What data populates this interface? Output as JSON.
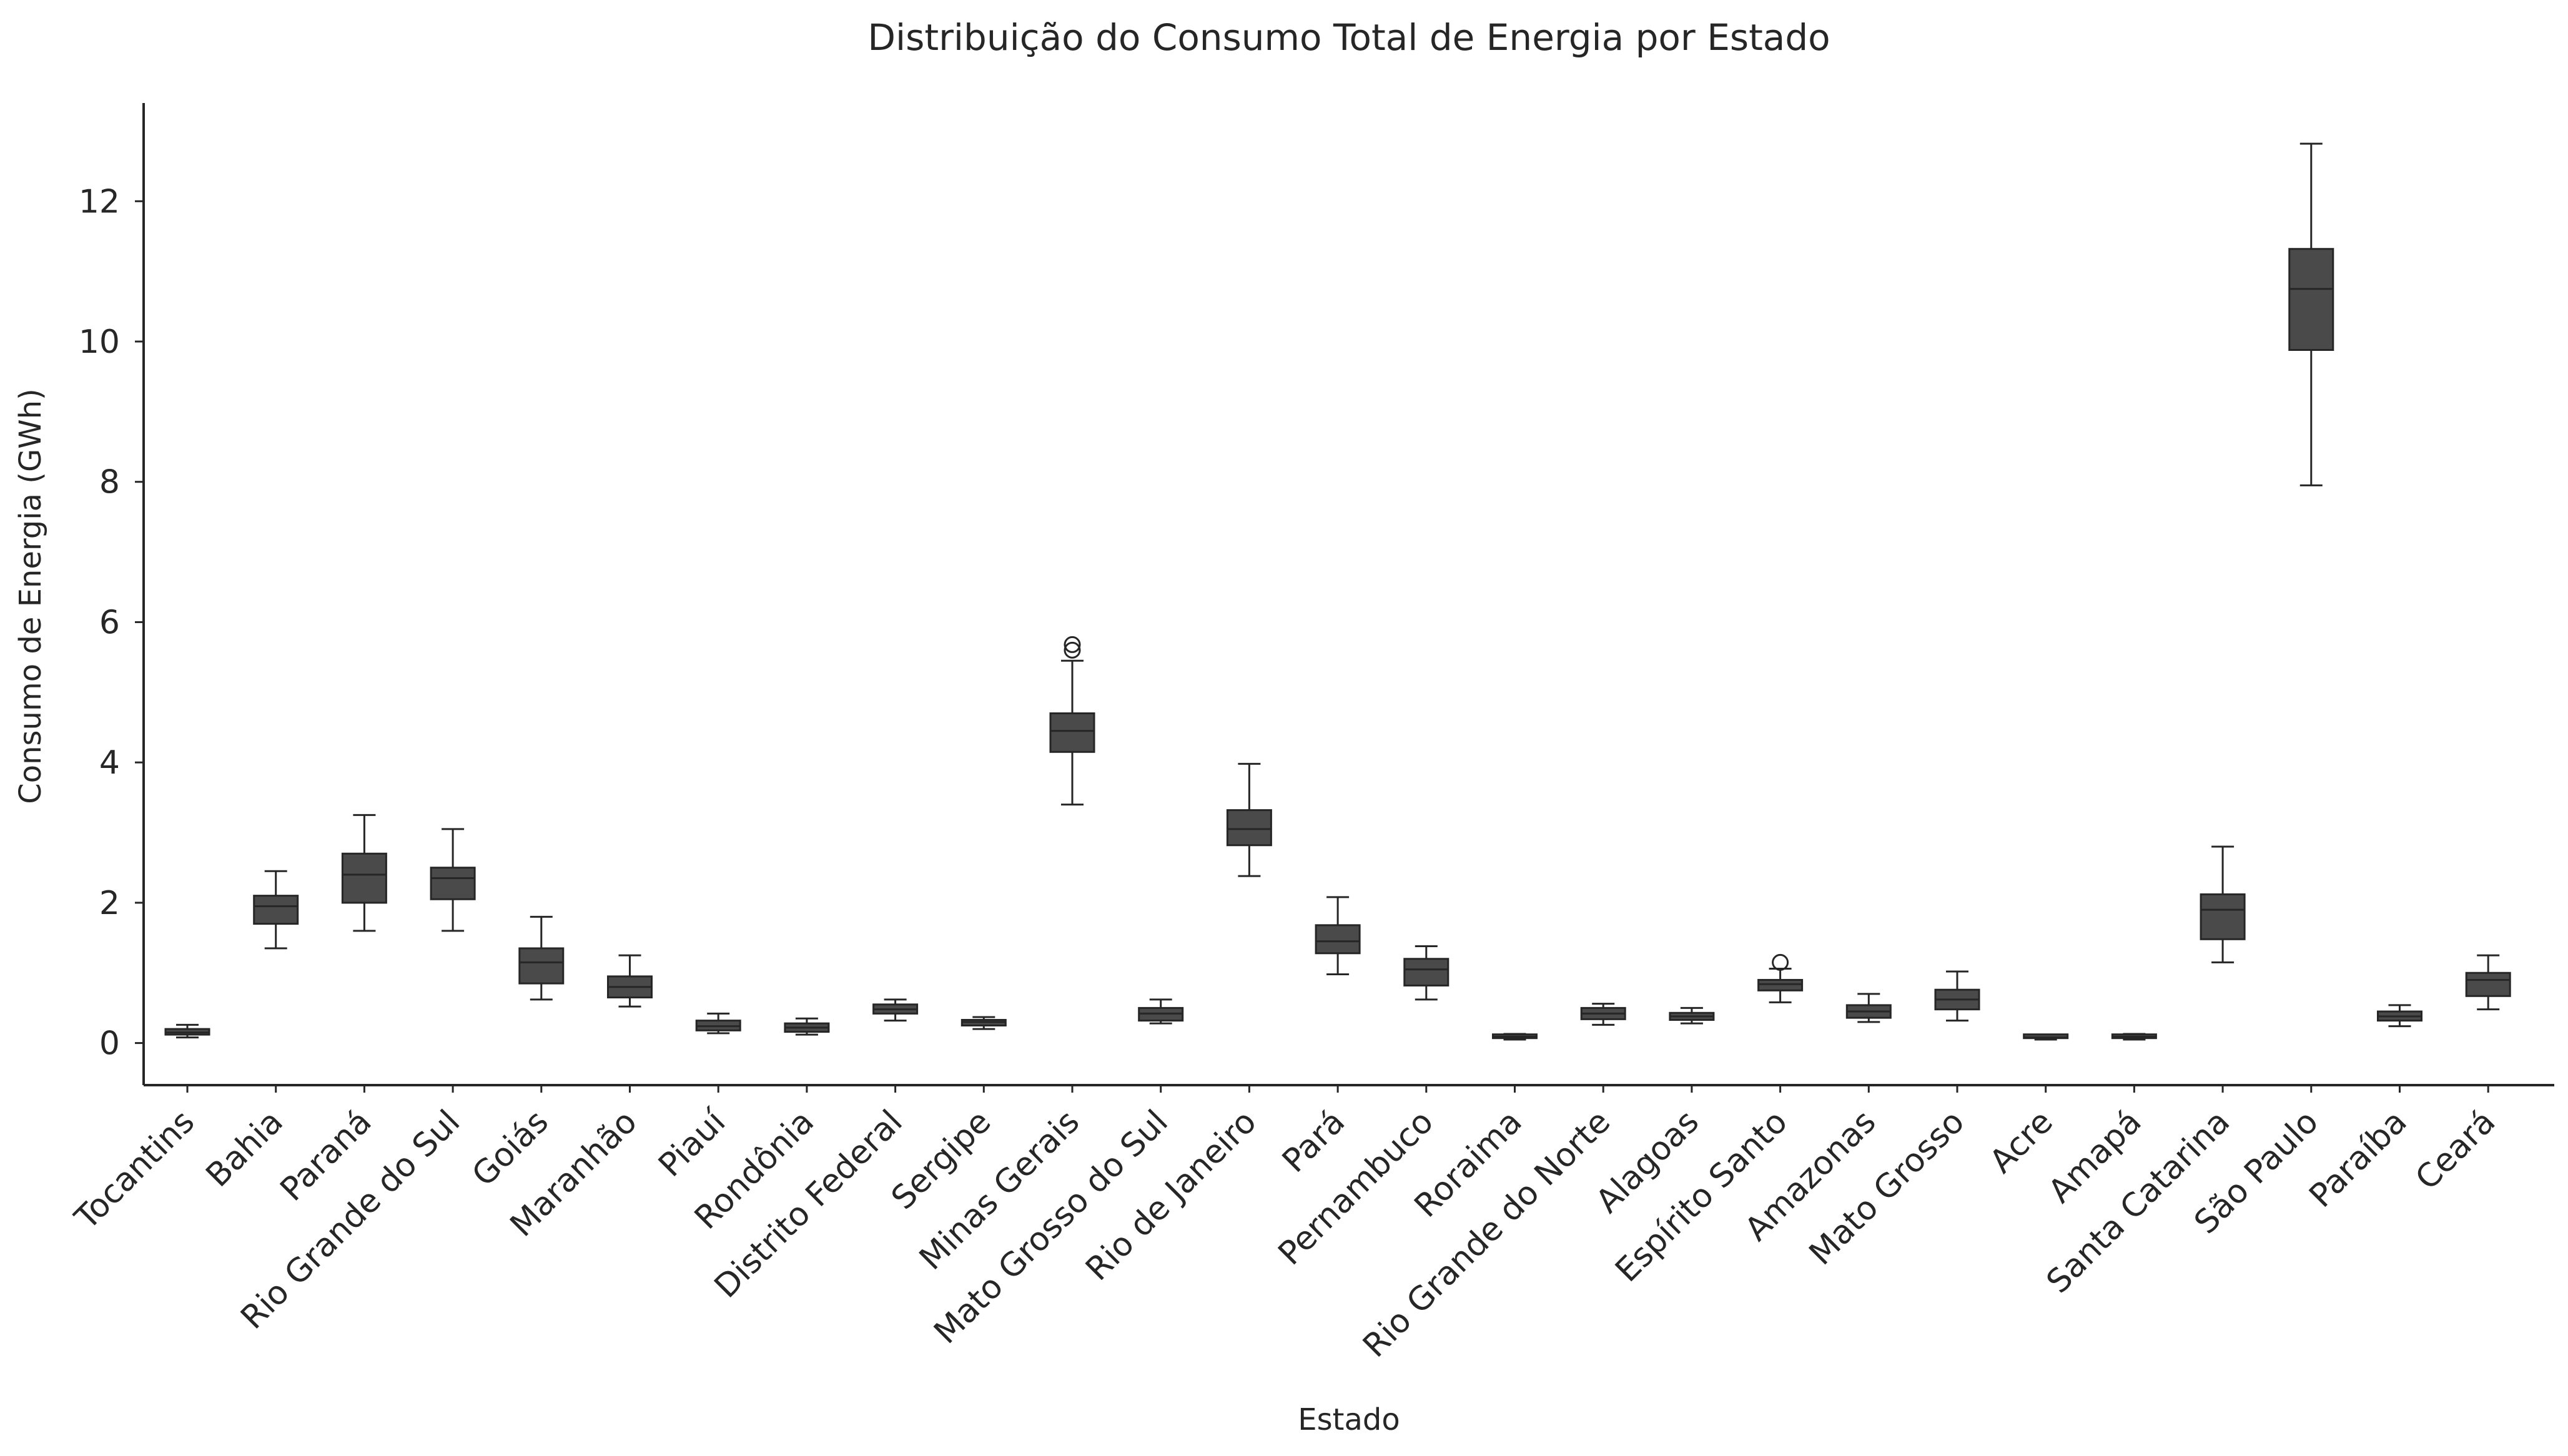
{
  "chart_data": {
    "type": "box",
    "title": "Distribuição do Consumo Total de Energia por Estado",
    "xlabel": "Estado",
    "ylabel": "Consumo de Energia (GWh)",
    "ylim": [
      -0.6,
      13.4
    ],
    "yticks": [
      "0",
      "2",
      "4",
      "6",
      "8",
      "10",
      "12"
    ],
    "grid": false,
    "box_color": "#4a4a4a",
    "line_color": "#262626",
    "boxes": [
      {
        "category": "Tocantins",
        "whislo": 0.08,
        "q1": 0.12,
        "median": 0.15,
        "q3": 0.2,
        "whishi": 0.26,
        "fliers": []
      },
      {
        "category": "Bahia",
        "whislo": 1.35,
        "q1": 1.7,
        "median": 1.95,
        "q3": 2.1,
        "whishi": 2.45,
        "fliers": []
      },
      {
        "category": "Paraná",
        "whislo": 1.6,
        "q1": 2.0,
        "median": 2.4,
        "q3": 2.7,
        "whishi": 3.25,
        "fliers": []
      },
      {
        "category": "Rio Grande do Sul",
        "whislo": 1.6,
        "q1": 2.05,
        "median": 2.35,
        "q3": 2.5,
        "whishi": 3.05,
        "fliers": []
      },
      {
        "category": "Goiás",
        "whislo": 0.62,
        "q1": 0.85,
        "median": 1.15,
        "q3": 1.35,
        "whishi": 1.8,
        "fliers": []
      },
      {
        "category": "Maranhão",
        "whislo": 0.52,
        "q1": 0.65,
        "median": 0.8,
        "q3": 0.95,
        "whishi": 1.25,
        "fliers": []
      },
      {
        "category": "Piauí",
        "whislo": 0.14,
        "q1": 0.18,
        "median": 0.24,
        "q3": 0.32,
        "whishi": 0.42,
        "fliers": []
      },
      {
        "category": "Rondônia",
        "whislo": 0.12,
        "q1": 0.16,
        "median": 0.22,
        "q3": 0.28,
        "whishi": 0.35,
        "fliers": []
      },
      {
        "category": "Distrito Federal",
        "whislo": 0.32,
        "q1": 0.42,
        "median": 0.48,
        "q3": 0.55,
        "whishi": 0.62,
        "fliers": []
      },
      {
        "category": "Sergipe",
        "whislo": 0.2,
        "q1": 0.25,
        "median": 0.3,
        "q3": 0.33,
        "whishi": 0.37,
        "fliers": []
      },
      {
        "category": "Minas Gerais",
        "whislo": 3.4,
        "q1": 4.15,
        "median": 4.45,
        "q3": 4.7,
        "whishi": 5.45,
        "fliers": [
          5.6,
          5.68
        ]
      },
      {
        "category": "Mato Grosso do Sul",
        "whislo": 0.28,
        "q1": 0.32,
        "median": 0.42,
        "q3": 0.5,
        "whishi": 0.62,
        "fliers": []
      },
      {
        "category": "Rio de Janeiro",
        "whislo": 2.38,
        "q1": 2.82,
        "median": 3.05,
        "q3": 3.32,
        "whishi": 3.98,
        "fliers": []
      },
      {
        "category": "Pará",
        "whislo": 0.98,
        "q1": 1.28,
        "median": 1.45,
        "q3": 1.68,
        "whishi": 2.08,
        "fliers": []
      },
      {
        "category": "Pernambuco",
        "whislo": 0.62,
        "q1": 0.82,
        "median": 1.05,
        "q3": 1.2,
        "whishi": 1.38,
        "fliers": []
      },
      {
        "category": "Roraima",
        "whislo": 0.05,
        "q1": 0.07,
        "median": 0.09,
        "q3": 0.11,
        "whishi": 0.13,
        "fliers": []
      },
      {
        "category": "Rio Grande do Norte",
        "whislo": 0.26,
        "q1": 0.34,
        "median": 0.42,
        "q3": 0.5,
        "whishi": 0.56,
        "fliers": []
      },
      {
        "category": "Alagoas",
        "whislo": 0.28,
        "q1": 0.33,
        "median": 0.38,
        "q3": 0.43,
        "whishi": 0.5,
        "fliers": []
      },
      {
        "category": "Espírito Santo",
        "whislo": 0.58,
        "q1": 0.75,
        "median": 0.84,
        "q3": 0.9,
        "whishi": 1.06,
        "fliers": [
          1.15
        ]
      },
      {
        "category": "Amazonas",
        "whislo": 0.3,
        "q1": 0.36,
        "median": 0.45,
        "q3": 0.54,
        "whishi": 0.7,
        "fliers": []
      },
      {
        "category": "Mato Grosso",
        "whislo": 0.32,
        "q1": 0.48,
        "median": 0.62,
        "q3": 0.76,
        "whishi": 1.02,
        "fliers": []
      },
      {
        "category": "Acre",
        "whislo": 0.05,
        "q1": 0.07,
        "median": 0.08,
        "q3": 0.1,
        "whishi": 0.12,
        "fliers": []
      },
      {
        "category": "Amapá",
        "whislo": 0.05,
        "q1": 0.07,
        "median": 0.09,
        "q3": 0.11,
        "whishi": 0.13,
        "fliers": []
      },
      {
        "category": "Santa Catarina",
        "whislo": 1.15,
        "q1": 1.48,
        "median": 1.9,
        "q3": 2.12,
        "whishi": 2.8,
        "fliers": []
      },
      {
        "category": "São Paulo",
        "whislo": 7.95,
        "q1": 9.88,
        "median": 10.75,
        "q3": 11.32,
        "whishi": 12.82,
        "fliers": []
      },
      {
        "category": "Paraíba",
        "whislo": 0.24,
        "q1": 0.32,
        "median": 0.38,
        "q3": 0.45,
        "whishi": 0.54,
        "fliers": []
      },
      {
        "category": "Ceará",
        "whislo": 0.48,
        "q1": 0.67,
        "median": 0.9,
        "q3": 1.0,
        "whishi": 1.25,
        "fliers": []
      }
    ]
  }
}
